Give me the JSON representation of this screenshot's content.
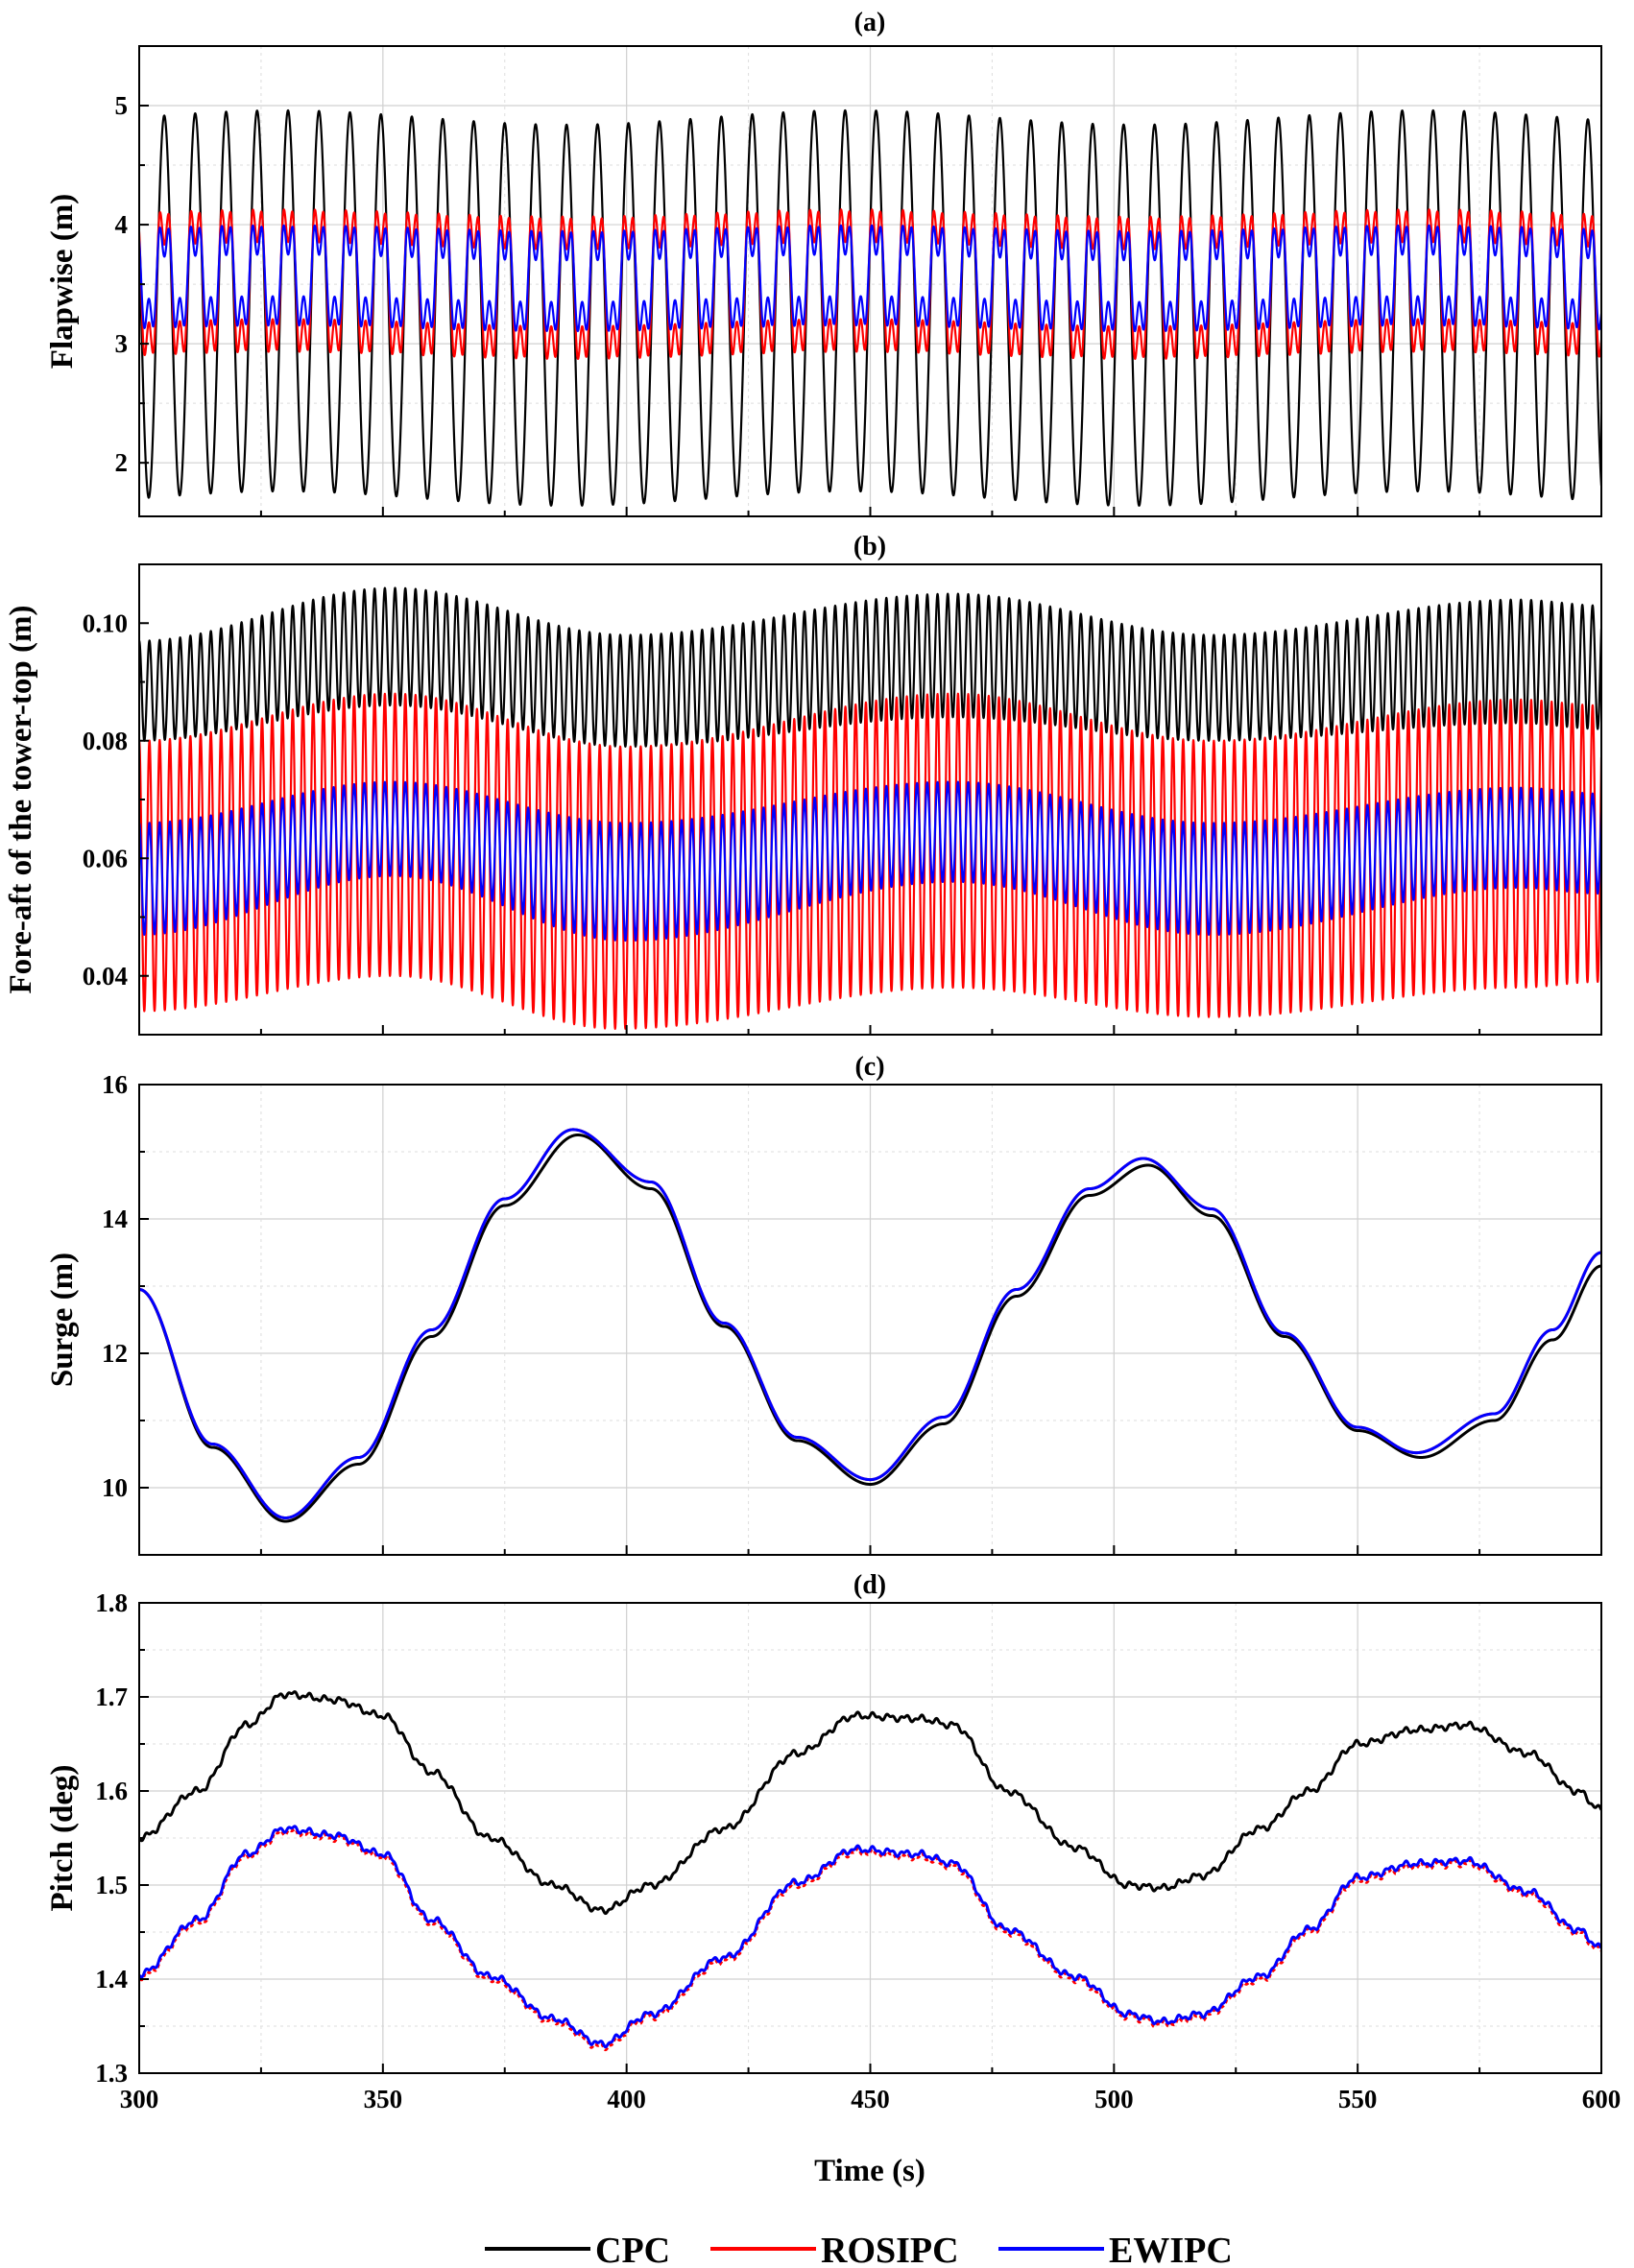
{
  "figure": {
    "xlabel": "Time (s)",
    "legend": [
      {
        "name": "CPC",
        "color": "#000000"
      },
      {
        "name": "ROSIPC",
        "color": "#ff0000"
      },
      {
        "name": "EWIPC",
        "color": "#0000ff"
      }
    ]
  },
  "chart_data": [
    {
      "type": "line",
      "panel": "(a)",
      "title": "(a)",
      "ylabel": "Flapwise (m)",
      "xlim": [
        300,
        600
      ],
      "ylim": [
        1.55,
        5.5
      ],
      "xticks": [
        300,
        350,
        400,
        450,
        500,
        550,
        600
      ],
      "yticks": [
        2,
        3,
        4,
        5
      ],
      "ytick_labels": [
        "2",
        "3",
        "4",
        "5"
      ],
      "grid": true,
      "description": "Periodic flapwise tip deflection, ~6.35 s period (47 cycles over 300 s)",
      "series": [
        {
          "name": "CPC",
          "color": "#000000",
          "period": 6.35,
          "mean": 3.3,
          "amplitude": 1.6,
          "min_range": [
            1.6,
            1.85
          ],
          "max_range": [
            4.8,
            5.05
          ]
        },
        {
          "name": "ROSIPC",
          "color": "#ff0000",
          "period": 6.35,
          "mean": 3.5,
          "amplitude": 0.72,
          "min_range": [
            2.75,
            2.9
          ],
          "max_range": [
            4.05,
            4.25
          ]
        },
        {
          "name": "EWIPC",
          "color": "#0000ff",
          "period": 6.35,
          "mean": 3.55,
          "amplitude": 0.5,
          "min_range": [
            3.0,
            3.1
          ],
          "max_range": [
            3.95,
            4.05
          ]
        }
      ]
    },
    {
      "type": "line",
      "panel": "(b)",
      "title": "(b)",
      "ylabel": "Fore-aft of the tower-top (m)",
      "xlim": [
        300,
        600
      ],
      "ylim": [
        0.03,
        0.11
      ],
      "xticks": [
        300,
        350,
        400,
        450,
        500,
        550,
        600
      ],
      "yticks": [
        0.04,
        0.06,
        0.08,
        0.1
      ],
      "ytick_labels": [
        "0.04",
        "0.06",
        "0.08",
        "0.10"
      ],
      "grid": false,
      "description": "High-frequency oscillation (~2.1 s period) with slow ~117 s modulation",
      "series": [
        {
          "name": "CPC",
          "color": "#000000",
          "upper_envelope": [
            [
              300,
              0.097
            ],
            [
              352,
              0.106
            ],
            [
              400,
              0.098
            ],
            [
              467,
              0.105
            ],
            [
              520,
              0.098
            ],
            [
              583,
              0.104
            ],
            [
              600,
              0.103
            ]
          ],
          "lower_envelope": [
            [
              300,
              0.08
            ],
            [
              352,
              0.086
            ],
            [
              400,
              0.079
            ],
            [
              467,
              0.084
            ],
            [
              520,
              0.08
            ],
            [
              583,
              0.083
            ],
            [
              600,
              0.082
            ]
          ]
        },
        {
          "name": "ROSIPC",
          "color": "#ff0000",
          "upper_envelope": [
            [
              300,
              0.08
            ],
            [
              352,
              0.088
            ],
            [
              400,
              0.079
            ],
            [
              467,
              0.088
            ],
            [
              520,
              0.08
            ],
            [
              583,
              0.087
            ],
            [
              600,
              0.086
            ]
          ],
          "lower_envelope": [
            [
              300,
              0.034
            ],
            [
              352,
              0.04
            ],
            [
              398,
              0.031
            ],
            [
              467,
              0.038
            ],
            [
              520,
              0.033
            ],
            [
              583,
              0.038
            ],
            [
              600,
              0.039
            ]
          ]
        },
        {
          "name": "EWIPC",
          "color": "#0000ff",
          "upper_envelope": [
            [
              300,
              0.066
            ],
            [
              352,
              0.073
            ],
            [
              400,
              0.066
            ],
            [
              467,
              0.073
            ],
            [
              520,
              0.066
            ],
            [
              583,
              0.072
            ],
            [
              600,
              0.071
            ]
          ],
          "lower_envelope": [
            [
              300,
              0.047
            ],
            [
              352,
              0.057
            ],
            [
              400,
              0.046
            ],
            [
              467,
              0.056
            ],
            [
              520,
              0.047
            ],
            [
              583,
              0.055
            ],
            [
              600,
              0.054
            ]
          ]
        }
      ]
    },
    {
      "type": "line",
      "panel": "(c)",
      "title": "(c)",
      "ylabel": "Surge (m)",
      "xlim": [
        300,
        600
      ],
      "ylim": [
        9.0,
        16.0
      ],
      "xticks": [
        300,
        350,
        400,
        450,
        500,
        550,
        600
      ],
      "yticks": [
        10,
        12,
        14,
        16
      ],
      "ytick_labels": [
        "10",
        "12",
        "14",
        "16"
      ],
      "grid": true,
      "series": [
        {
          "name": "CPC",
          "color": "#000000",
          "points": [
            [
              300,
              12.95
            ],
            [
              315,
              10.6
            ],
            [
              330,
              9.5
            ],
            [
              345,
              10.35
            ],
            [
              360,
              12.25
            ],
            [
              375,
              14.2
            ],
            [
              390,
              15.25
            ],
            [
              405,
              14.45
            ],
            [
              420,
              12.4
            ],
            [
              435,
              10.7
            ],
            [
              450,
              10.05
            ],
            [
              465,
              10.95
            ],
            [
              480,
              12.85
            ],
            [
              495,
              14.35
            ],
            [
              507,
              14.8
            ],
            [
              520,
              14.05
            ],
            [
              535,
              12.25
            ],
            [
              550,
              10.85
            ],
            [
              563,
              10.45
            ],
            [
              578,
              11.0
            ],
            [
              590,
              12.2
            ],
            [
              600,
              13.3
            ]
          ]
        },
        {
          "name": "ROSIPC",
          "color": "#ff0000",
          "points": [
            [
              300,
              12.95
            ],
            [
              315,
              10.65
            ],
            [
              330,
              9.55
            ],
            [
              345,
              10.45
            ],
            [
              360,
              12.35
            ],
            [
              375,
              14.3
            ],
            [
              389,
              15.33
            ],
            [
              405,
              14.55
            ],
            [
              420,
              12.45
            ],
            [
              435,
              10.75
            ],
            [
              450,
              10.12
            ],
            [
              465,
              11.05
            ],
            [
              480,
              12.95
            ],
            [
              495,
              14.45
            ],
            [
              506,
              14.9
            ],
            [
              520,
              14.15
            ],
            [
              535,
              12.3
            ],
            [
              550,
              10.9
            ],
            [
              562,
              10.52
            ],
            [
              578,
              11.1
            ],
            [
              590,
              12.35
            ],
            [
              600,
              13.5
            ]
          ]
        },
        {
          "name": "EWIPC",
          "color": "#0000ff",
          "points": [
            [
              300,
              12.95
            ],
            [
              315,
              10.65
            ],
            [
              330,
              9.55
            ],
            [
              345,
              10.45
            ],
            [
              360,
              12.35
            ],
            [
              375,
              14.3
            ],
            [
              389,
              15.33
            ],
            [
              405,
              14.55
            ],
            [
              420,
              12.45
            ],
            [
              435,
              10.75
            ],
            [
              450,
              10.12
            ],
            [
              465,
              11.05
            ],
            [
              480,
              12.95
            ],
            [
              495,
              14.45
            ],
            [
              506,
              14.9
            ],
            [
              520,
              14.15
            ],
            [
              535,
              12.3
            ],
            [
              550,
              10.9
            ],
            [
              562,
              10.52
            ],
            [
              578,
              11.1
            ],
            [
              590,
              12.35
            ],
            [
              600,
              13.5
            ]
          ]
        }
      ]
    },
    {
      "type": "line",
      "panel": "(d)",
      "title": "(d)",
      "ylabel": "Pitch (deg)",
      "xlim": [
        300,
        600
      ],
      "ylim": [
        1.3,
        1.8
      ],
      "xticks": [
        300,
        350,
        400,
        450,
        500,
        550,
        600
      ],
      "xtick_labels": [
        "300",
        "350",
        "400",
        "450",
        "500",
        "550",
        "600"
      ],
      "yticks": [
        1.3,
        1.4,
        1.5,
        1.6,
        1.7,
        1.8
      ],
      "ytick_labels": [
        "1.3",
        "1.4",
        "1.5",
        "1.6",
        "1.7",
        "1.8"
      ],
      "grid": true,
      "series": [
        {
          "name": "CPC",
          "color": "#000000",
          "points": [
            [
              300,
              1.55
            ],
            [
              312,
              1.6
            ],
            [
              322,
              1.67
            ],
            [
              330,
              1.703
            ],
            [
              340,
              1.697
            ],
            [
              350,
              1.68
            ],
            [
              360,
              1.62
            ],
            [
              372,
              1.55
            ],
            [
              385,
              1.5
            ],
            [
              395,
              1.473
            ],
            [
              405,
              1.5
            ],
            [
              420,
              1.56
            ],
            [
              435,
              1.64
            ],
            [
              447,
              1.68
            ],
            [
              460,
              1.677
            ],
            [
              467,
              1.67
            ],
            [
              478,
              1.6
            ],
            [
              492,
              1.54
            ],
            [
              503,
              1.5
            ],
            [
              510,
              1.497
            ],
            [
              518,
              1.51
            ],
            [
              530,
              1.56
            ],
            [
              540,
              1.6
            ],
            [
              550,
              1.65
            ],
            [
              562,
              1.665
            ],
            [
              572,
              1.67
            ],
            [
              585,
              1.64
            ],
            [
              595,
              1.6
            ],
            [
              600,
              1.58
            ]
          ]
        },
        {
          "name": "ROSIPC",
          "color": "#ff0000",
          "points": [
            [
              300,
              1.402
            ],
            [
              312,
              1.46
            ],
            [
              322,
              1.53
            ],
            [
              330,
              1.557
            ],
            [
              340,
              1.55
            ],
            [
              350,
              1.53
            ],
            [
              360,
              1.46
            ],
            [
              372,
              1.4
            ],
            [
              385,
              1.355
            ],
            [
              395,
              1.328
            ],
            [
              405,
              1.36
            ],
            [
              420,
              1.42
            ],
            [
              435,
              1.5
            ],
            [
              447,
              1.535
            ],
            [
              460,
              1.53
            ],
            [
              467,
              1.52
            ],
            [
              478,
              1.45
            ],
            [
              492,
              1.4
            ],
            [
              503,
              1.36
            ],
            [
              510,
              1.352
            ],
            [
              518,
              1.36
            ],
            [
              530,
              1.4
            ],
            [
              540,
              1.45
            ],
            [
              550,
              1.505
            ],
            [
              562,
              1.52
            ],
            [
              572,
              1.523
            ],
            [
              585,
              1.49
            ],
            [
              595,
              1.45
            ],
            [
              600,
              1.43
            ]
          ]
        },
        {
          "name": "EWIPC",
          "color": "#0000ff",
          "points": [
            [
              300,
              1.405
            ],
            [
              312,
              1.463
            ],
            [
              322,
              1.533
            ],
            [
              330,
              1.56
            ],
            [
              340,
              1.553
            ],
            [
              350,
              1.533
            ],
            [
              360,
              1.463
            ],
            [
              372,
              1.403
            ],
            [
              385,
              1.358
            ],
            [
              395,
              1.331
            ],
            [
              405,
              1.363
            ],
            [
              420,
              1.423
            ],
            [
              435,
              1.503
            ],
            [
              447,
              1.538
            ],
            [
              460,
              1.533
            ],
            [
              467,
              1.523
            ],
            [
              478,
              1.453
            ],
            [
              492,
              1.403
            ],
            [
              503,
              1.363
            ],
            [
              510,
              1.355
            ],
            [
              518,
              1.363
            ],
            [
              530,
              1.403
            ],
            [
              540,
              1.453
            ],
            [
              550,
              1.508
            ],
            [
              562,
              1.523
            ],
            [
              572,
              1.526
            ],
            [
              585,
              1.493
            ],
            [
              595,
              1.453
            ],
            [
              600,
              1.433
            ]
          ]
        }
      ]
    }
  ]
}
